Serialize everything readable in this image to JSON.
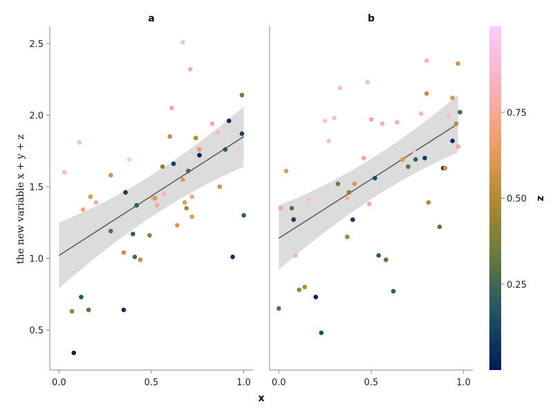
{
  "chart_data": {
    "type": "scatter",
    "xlabel": "x",
    "ylabel": "the new variable x + y + z",
    "colorbar": {
      "label": "z",
      "ticks": [
        "0.25",
        "0.50",
        "0.75"
      ],
      "range": [
        0,
        1
      ]
    },
    "x_ticks": [
      "0.0",
      "0.5",
      "1.0"
    ],
    "y_ticks": [
      "0.5",
      "1.0",
      "1.5",
      "2.0",
      "2.5"
    ],
    "xlim": [
      -0.05,
      1.05
    ],
    "ylim": [
      0.22,
      2.62
    ],
    "grid": false,
    "colormap": [
      "#011a57",
      "#1f5363",
      "#6a7a3e",
      "#b38a2e",
      "#f0a06a",
      "#f8b2c0",
      "#fecbf8"
    ],
    "panels": [
      {
        "title": "a",
        "fit": {
          "x": [
            0.0,
            1.0
          ],
          "y": [
            1.02,
            1.85
          ],
          "band_lower": [
            0.79,
            1.64
          ],
          "band_upper": [
            1.25,
            2.06
          ]
        },
        "points": [
          {
            "x": 0.03,
            "y": 1.6,
            "z": 0.88
          },
          {
            "x": 0.07,
            "y": 0.63,
            "z": 0.45
          },
          {
            "x": 0.08,
            "y": 0.34,
            "z": 0.02
          },
          {
            "x": 0.11,
            "y": 1.81,
            "z": 0.9
          },
          {
            "x": 0.12,
            "y": 0.73,
            "z": 0.18
          },
          {
            "x": 0.13,
            "y": 1.34,
            "z": 0.7
          },
          {
            "x": 0.16,
            "y": 0.64,
            "z": 0.3
          },
          {
            "x": 0.17,
            "y": 1.43,
            "z": 0.6
          },
          {
            "x": 0.2,
            "y": 1.39,
            "z": 0.78
          },
          {
            "x": 0.28,
            "y": 1.58,
            "z": 0.58
          },
          {
            "x": 0.28,
            "y": 1.19,
            "z": 0.28
          },
          {
            "x": 0.35,
            "y": 1.04,
            "z": 0.55
          },
          {
            "x": 0.35,
            "y": 0.64,
            "z": 0.05
          },
          {
            "x": 0.36,
            "y": 1.46,
            "z": 0.1
          },
          {
            "x": 0.38,
            "y": 1.69,
            "z": 0.98
          },
          {
            "x": 0.4,
            "y": 1.17,
            "z": 0.2
          },
          {
            "x": 0.41,
            "y": 1.01,
            "z": 0.25
          },
          {
            "x": 0.42,
            "y": 1.37,
            "z": 0.2
          },
          {
            "x": 0.44,
            "y": 0.99,
            "z": 0.55
          },
          {
            "x": 0.49,
            "y": 1.16,
            "z": 0.42
          },
          {
            "x": 0.51,
            "y": 1.42,
            "z": 0.76
          },
          {
            "x": 0.52,
            "y": 1.42,
            "z": 0.6
          },
          {
            "x": 0.53,
            "y": 1.37,
            "z": 0.78
          },
          {
            "x": 0.56,
            "y": 1.64,
            "z": 0.4
          },
          {
            "x": 0.57,
            "y": 1.45,
            "z": 0.82
          },
          {
            "x": 0.6,
            "y": 1.85,
            "z": 0.55
          },
          {
            "x": 0.61,
            "y": 2.05,
            "z": 0.75
          },
          {
            "x": 0.62,
            "y": 1.66,
            "z": 0.1
          },
          {
            "x": 0.64,
            "y": 1.23,
            "z": 0.6
          },
          {
            "x": 0.67,
            "y": 2.51,
            "z": 0.9
          },
          {
            "x": 0.67,
            "y": 1.55,
            "z": 0.62
          },
          {
            "x": 0.68,
            "y": 1.39,
            "z": 0.62
          },
          {
            "x": 0.69,
            "y": 1.35,
            "z": 0.48
          },
          {
            "x": 0.7,
            "y": 1.61,
            "z": 0.25
          },
          {
            "x": 0.71,
            "y": 2.32,
            "z": 0.8
          },
          {
            "x": 0.72,
            "y": 1.29,
            "z": 0.62
          },
          {
            "x": 0.72,
            "y": 1.43,
            "z": 0.7
          },
          {
            "x": 0.74,
            "y": 1.84,
            "z": 0.5
          },
          {
            "x": 0.76,
            "y": 1.72,
            "z": 0.02
          },
          {
            "x": 0.76,
            "y": 1.76,
            "z": 0.65
          },
          {
            "x": 0.83,
            "y": 1.94,
            "z": 0.75
          },
          {
            "x": 0.86,
            "y": 1.88,
            "z": 0.85
          },
          {
            "x": 0.87,
            "y": 1.5,
            "z": 0.58
          },
          {
            "x": 0.9,
            "y": 1.76,
            "z": 0.18
          },
          {
            "x": 0.92,
            "y": 1.96,
            "z": 0.05
          },
          {
            "x": 0.94,
            "y": 1.01,
            "z": 0.05
          },
          {
            "x": 0.99,
            "y": 1.87,
            "z": 0.12
          },
          {
            "x": 0.99,
            "y": 2.14,
            "z": 0.35
          },
          {
            "x": 1.0,
            "y": 1.3,
            "z": 0.22
          }
        ]
      },
      {
        "title": "b",
        "fit": {
          "x": [
            0.0,
            0.97
          ],
          "y": [
            1.14,
            1.94
          ],
          "band_lower": [
            0.92,
            1.74
          ],
          "band_upper": [
            1.37,
            2.14
          ]
        },
        "points": [
          {
            "x": 0.0,
            "y": 0.65,
            "z": 0.28
          },
          {
            "x": 0.01,
            "y": 1.35,
            "z": 0.75
          },
          {
            "x": 0.04,
            "y": 1.61,
            "z": 0.62
          },
          {
            "x": 0.07,
            "y": 1.35,
            "z": 0.28
          },
          {
            "x": 0.08,
            "y": 1.28,
            "z": 0.8
          },
          {
            "x": 0.08,
            "y": 1.27,
            "z": 0.1
          },
          {
            "x": 0.09,
            "y": 1.02,
            "z": 0.82
          },
          {
            "x": 0.11,
            "y": 0.78,
            "z": 0.45
          },
          {
            "x": 0.14,
            "y": 0.8,
            "z": 0.5
          },
          {
            "x": 0.16,
            "y": 1.41,
            "z": 0.9
          },
          {
            "x": 0.2,
            "y": 0.73,
            "z": 0.02
          },
          {
            "x": 0.23,
            "y": 0.48,
            "z": 0.15
          },
          {
            "x": 0.25,
            "y": 1.96,
            "z": 0.95
          },
          {
            "x": 0.27,
            "y": 1.82,
            "z": 0.92
          },
          {
            "x": 0.3,
            "y": 1.98,
            "z": 0.88
          },
          {
            "x": 0.32,
            "y": 1.52,
            "z": 0.35
          },
          {
            "x": 0.33,
            "y": 2.19,
            "z": 0.9
          },
          {
            "x": 0.37,
            "y": 1.15,
            "z": 0.45
          },
          {
            "x": 0.37,
            "y": 1.42,
            "z": 0.82
          },
          {
            "x": 0.38,
            "y": 1.46,
            "z": 0.4
          },
          {
            "x": 0.4,
            "y": 1.27,
            "z": 0.08
          },
          {
            "x": 0.41,
            "y": 1.52,
            "z": 0.6
          },
          {
            "x": 0.46,
            "y": 1.7,
            "z": 0.75
          },
          {
            "x": 0.48,
            "y": 2.23,
            "z": 0.9
          },
          {
            "x": 0.49,
            "y": 1.38,
            "z": 0.78
          },
          {
            "x": 0.5,
            "y": 1.97,
            "z": 0.75
          },
          {
            "x": 0.52,
            "y": 1.56,
            "z": 0.15
          },
          {
            "x": 0.54,
            "y": 1.02,
            "z": 0.2
          },
          {
            "x": 0.56,
            "y": 1.94,
            "z": 0.82
          },
          {
            "x": 0.58,
            "y": 0.99,
            "z": 0.3
          },
          {
            "x": 0.62,
            "y": 0.77,
            "z": 0.2
          },
          {
            "x": 0.64,
            "y": 1.95,
            "z": 0.78
          },
          {
            "x": 0.67,
            "y": 1.69,
            "z": 0.62
          },
          {
            "x": 0.7,
            "y": 1.64,
            "z": 0.3
          },
          {
            "x": 0.73,
            "y": 1.75,
            "z": 0.9
          },
          {
            "x": 0.74,
            "y": 1.69,
            "z": 0.22
          },
          {
            "x": 0.77,
            "y": 2.01,
            "z": 0.85
          },
          {
            "x": 0.79,
            "y": 1.7,
            "z": 0.1
          },
          {
            "x": 0.8,
            "y": 2.38,
            "z": 0.82
          },
          {
            "x": 0.8,
            "y": 2.15,
            "z": 0.55
          },
          {
            "x": 0.81,
            "y": 1.39,
            "z": 0.5
          },
          {
            "x": 0.87,
            "y": 1.22,
            "z": 0.3
          },
          {
            "x": 0.89,
            "y": 1.63,
            "z": 0.05
          },
          {
            "x": 0.9,
            "y": 1.63,
            "z": 0.55
          },
          {
            "x": 0.92,
            "y": 2.0,
            "z": 0.9
          },
          {
            "x": 0.94,
            "y": 2.12,
            "z": 0.6
          },
          {
            "x": 0.94,
            "y": 1.82,
            "z": 0.05
          },
          {
            "x": 0.96,
            "y": 1.94,
            "z": 0.52
          },
          {
            "x": 0.97,
            "y": 2.36,
            "z": 0.58
          },
          {
            "x": 0.97,
            "y": 1.78,
            "z": 0.75
          },
          {
            "x": 0.98,
            "y": 2.02,
            "z": 0.25
          }
        ]
      }
    ]
  }
}
